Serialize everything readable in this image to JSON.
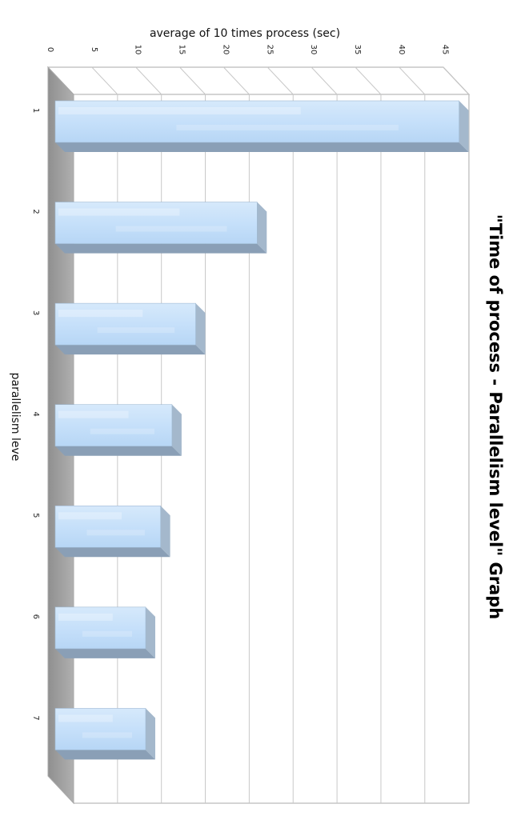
{
  "chart_data": {
    "type": "bar",
    "orientation": "horizontal-3d",
    "title": "\"Time of process - Parallelism level\" Graph",
    "xlabel": "average of 10 times process (sec)",
    "ylabel": "parallelism leve",
    "categories": [
      "1",
      "2",
      "3",
      "4",
      "5",
      "6",
      "7"
    ],
    "values": [
      46,
      23,
      16,
      13.3,
      12,
      10.3,
      10.3
    ],
    "xlim": [
      0,
      48
    ],
    "xticks": [
      "0",
      "5",
      "10",
      "15",
      "20",
      "25",
      "30",
      "35",
      "40",
      "45"
    ],
    "grid": true,
    "legend": "none"
  },
  "colors": {
    "bar_front_top": "#d6e9fb",
    "bar_front_bottom": "#b7d6f5",
    "bar_top_face": "#8a9fb6",
    "bar_side_face": "#a4b8cc",
    "wall_side": "#9b9b9b",
    "grid": "#c8c8c8",
    "frame": "#a8a8a8"
  }
}
